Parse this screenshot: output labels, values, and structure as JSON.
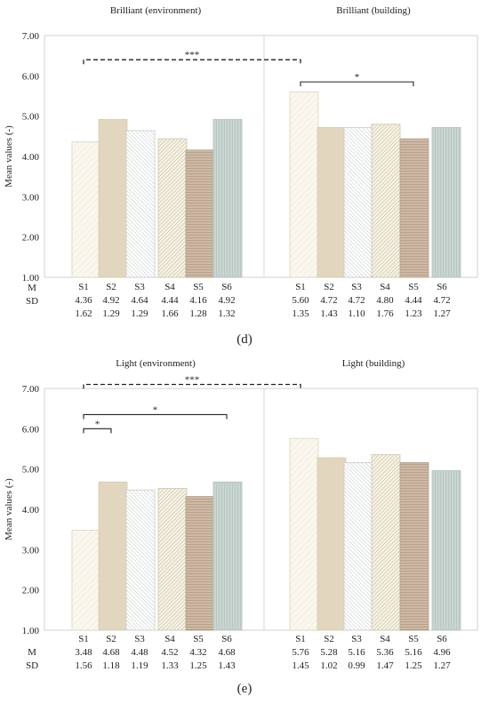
{
  "chart_data": [
    {
      "type": "bar",
      "panel_label": "(d)",
      "ylabel": "Mean values (-)",
      "ylim": [
        1,
        7
      ],
      "yticks": [
        "1.00",
        "2.00",
        "3.00",
        "4.00",
        "5.00",
        "6.00",
        "7.00"
      ],
      "grid": false,
      "row_labels": [
        "M",
        "SD"
      ],
      "groups": [
        {
          "title": "Brilliant (environment)",
          "categories": [
            "S1",
            "S2",
            "S3",
            "S4",
            "S5",
            "S6"
          ],
          "values": [
            4.36,
            4.92,
            4.64,
            4.44,
            4.16,
            4.92
          ],
          "mean_labels": [
            "4.36",
            "4.92",
            "4.64",
            "4.44",
            "4.16",
            "4.92"
          ],
          "sd_labels": [
            "1.62",
            "1.29",
            "1.29",
            "1.66",
            "1.28",
            "1.32"
          ]
        },
        {
          "title": "Brilliant (building)",
          "categories": [
            "S1",
            "S2",
            "S3",
            "S4",
            "S5",
            "S6"
          ],
          "values": [
            5.6,
            4.72,
            4.72,
            4.8,
            4.44,
            4.72
          ],
          "mean_labels": [
            "5.60",
            "4.72",
            "4.72",
            "4.80",
            "4.44",
            "4.72"
          ],
          "sd_labels": [
            "1.35",
            "1.43",
            "1.10",
            "1.76",
            "1.23",
            "1.27"
          ]
        }
      ],
      "annotations": [
        {
          "text": "***",
          "style": "dashed",
          "from": [
            0,
            "S1"
          ],
          "to": [
            1,
            "S1"
          ],
          "y": 6.4
        },
        {
          "text": "*",
          "style": "solid",
          "from": [
            1,
            "S1"
          ],
          "to": [
            1,
            "S5"
          ],
          "y": 5.85
        }
      ]
    },
    {
      "type": "bar",
      "panel_label": "(e)",
      "ylabel": "Mean values (-)",
      "ylim": [
        1,
        7
      ],
      "yticks": [
        "1.00",
        "2.00",
        "3.00",
        "4.00",
        "5.00",
        "6.00",
        "7.00"
      ],
      "grid": false,
      "row_labels": [
        "M",
        "SD"
      ],
      "groups": [
        {
          "title": "Light (environment)",
          "categories": [
            "S1",
            "S2",
            "S3",
            "S4",
            "S5",
            "S6"
          ],
          "values": [
            3.48,
            4.68,
            4.48,
            4.52,
            4.32,
            4.68
          ],
          "mean_labels": [
            "3.48",
            "4.68",
            "4.48",
            "4.52",
            "4.32",
            "4.68"
          ],
          "sd_labels": [
            "1.56",
            "1.18",
            "1.19",
            "1.33",
            "1.25",
            "1.43"
          ]
        },
        {
          "title": "Light (building)",
          "categories": [
            "S1",
            "S2",
            "S3",
            "S4",
            "S5",
            "S6"
          ],
          "values": [
            5.76,
            5.28,
            5.16,
            5.36,
            5.16,
            4.96
          ],
          "mean_labels": [
            "5.76",
            "5.28",
            "5.16",
            "5.36",
            "5.16",
            "4.96"
          ],
          "sd_labels": [
            "1.45",
            "1.02",
            "0.99",
            "1.47",
            "1.25",
            "1.27"
          ]
        }
      ],
      "annotations": [
        {
          "text": "***",
          "style": "dashed",
          "from": [
            0,
            "S1"
          ],
          "to": [
            1,
            "S1"
          ],
          "y": 7.1
        },
        {
          "text": "*",
          "style": "solid",
          "from": [
            0,
            "S1"
          ],
          "to": [
            0,
            "S6"
          ],
          "y": 6.35
        },
        {
          "text": "*",
          "style": "solid",
          "from": [
            0,
            "S1"
          ],
          "to": [
            0,
            "S2"
          ],
          "y": 6.0
        }
      ]
    }
  ],
  "series_styles": [
    {
      "category": "S1",
      "fill": "#faf8ee",
      "pattern": "light-diagonal",
      "stroke": "#d9d4c2"
    },
    {
      "category": "S2",
      "fill": "#e2d7be",
      "pattern": "solid",
      "stroke": "#d6cab0"
    },
    {
      "category": "S3",
      "fill": "#ffffff",
      "pattern": "diagonal-gray",
      "stroke": "#c8cccc"
    },
    {
      "category": "S4",
      "fill": "#f6f2e4",
      "pattern": "diagonal-tan",
      "stroke": "#cfc7ad"
    },
    {
      "category": "S5",
      "fill": "#cdb9a4",
      "pattern": "horizontal",
      "stroke": "#b5a28c"
    },
    {
      "category": "S6",
      "fill": "#c9d6d1",
      "pattern": "vertical",
      "stroke": "#b3c2bd"
    }
  ]
}
